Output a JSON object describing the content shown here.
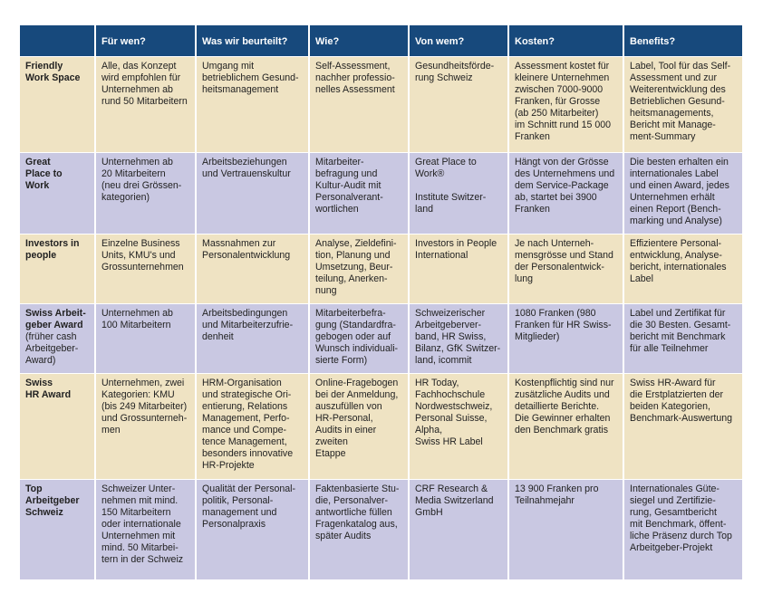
{
  "header": [
    "",
    "Für wen?",
    "Was wir beurteilt?",
    "Wie?",
    "Von wem?",
    "Kosten?",
    "Benefits?"
  ],
  "colors": {
    "header": "#17497c",
    "beige": "#efe3c3",
    "lavender": "#c9c8e2"
  },
  "rows": [
    {
      "name": "Friendly\nWork Space",
      "sub": "",
      "cells": [
        "Alle, das Konzept\nwird empfohlen für\nUnternehmen ab\nrund 50 Mitarbeitern",
        "Umgang mit\nbetrieblichem Gesund-\nheitsmanagement",
        "Self-Assessment,\nnachher professio-\nnelles Assessment",
        "Gesundheitsförde-\nrung Schweiz",
        "Assessment kostet für\nkleinere Unternehmen\nzwischen 7000-9000\nFranken, für Grosse\n(ab 250 Mitarbeiter)\nim Schnitt rund 15 000\nFranken",
        "Label, Tool für das Self-\nAssessment und zur\nWeiterentwicklung des\nBetrieblichen Gesund-\nheitsmanagements,\nBericht mit Manage-\nment-Summary"
      ]
    },
    {
      "name": "Great\nPlace to\nWork",
      "sub": "",
      "cells": [
        "Unternehmen ab\n20 Mitarbeitern\n(neu drei Grössen-\nkategorien)",
        "Arbeitsbeziehungen\nund Vertrauenskultur",
        "Mitarbeiter-\nbefragung und\nKultur-Audit mit\nPersonalverant-\nwortlichen",
        "Great Place to\nWork®\n\nInstitute Switzer-\nland",
        "Hängt von der Grösse\ndes Unternehmens und\ndem Service-Package\nab, startet bei 3900\nFranken",
        "Die besten erhalten ein\ninternationales Label\nund einen Award, jedes\nUnternehmen erhält\neinen Report (Bench-\nmarking und Analyse)"
      ]
    },
    {
      "name": "Investors in\npeople",
      "sub": "",
      "cells": [
        "Einzelne Business\nUnits, KMU's und\nGrossunternehmen",
        "Massnahmen zur\nPersonalentwicklung",
        "Analyse, Zieldefini-\ntion, Planung und\nUmsetzung, Beur-\nteilung, Anerken-\nnung",
        "Investors in People\nInternational",
        "Je nach Unterneh-\nmensgrösse und Stand\nder Personalentwick-\nlung",
        "Effizientere Personal-\nentwicklung, Analyse-\nbericht, internationales\nLabel"
      ]
    },
    {
      "name": "Swiss Arbeit-\ngeber Award",
      "sub": "(früher cash\nArbeitgeber-\nAward)",
      "cells": [
        "Unternehmen ab\n100 Mitarbeitern",
        "Arbeitsbedingungen\nund Mitarbeiterzufrie-\ndenheit",
        "Mitarbeiterbefra-\ngung (Standardfra-\ngebogen oder auf\nWunsch individuali-\nsierte Form)",
        "Schweizerischer\nArbeitgeberver-\nband, HR Swiss,\nBilanz, GfK Switzer-\nland, icommit",
        "1080 Franken (980\nFranken für HR Swiss-\nMitglieder)",
        "Label und Zertifikat für\ndie 30 Besten. Gesamt-\nbericht mit Benchmark\nfür alle Teilnehmer"
      ]
    },
    {
      "name": "Swiss\nHR Award",
      "sub": "",
      "cells": [
        "Unternehmen, zwei\nKategorien: KMU\n(bis 249 Mitarbeiter)\nund Grossunterneh-\nmen",
        "HRM-Organisation\nund strategische Ori-\nentierung, Relations\nManagement, Perfo-\nmance und Compe-\ntence Management,\nbesonders innovative\nHR-Projekte",
        "Online-Fragebogen\nbei der Anmeldung,\nauszufüllen von\nHR-Personal,\nAudits in einer\nzweiten\nEtappe",
        "HR Today,\nFachhochschule\nNordwestschweiz,\nPersonal Suisse,\nAlpha,\nSwiss HR Label",
        "Kostenpflichtig sind nur\nzusätzliche Audits und\ndetaillierte Berichte.\nDie Gewinner erhalten\nden Benchmark gratis",
        "Swiss HR-Award für\ndie Erstplatzierten der\nbeiden Kategorien,\nBenchmark-Auswertung"
      ]
    },
    {
      "name": "Top\nArbeitgeber\nSchweiz",
      "sub": "",
      "cells": [
        "Schweizer Unter-\nnehmen mit mind.\n150 Mitarbeitern\noder internationale\nUnternehmen mit\nmind. 50 Mitarbei-\ntern in der Schweiz",
        "Qualität der Personal-\npolitik, Personal-\nmanagement und\nPersonalpraxis",
        "Faktenbasierte Stu-\ndie, Personalver-\nantwortliche füllen\nFragenkatalog aus,\nspäter Audits",
        "CRF Research &\nMedia Switzerland\nGmbH",
        "13 900 Franken pro\nTeilnahmejahr",
        "Internationales Güte-\nsiegel und Zertifizie-\nrung, Gesamtbericht\nmit Benchmark, öffent-\nliche Präsenz durch Top\nArbeitgeber-Projekt"
      ]
    }
  ]
}
